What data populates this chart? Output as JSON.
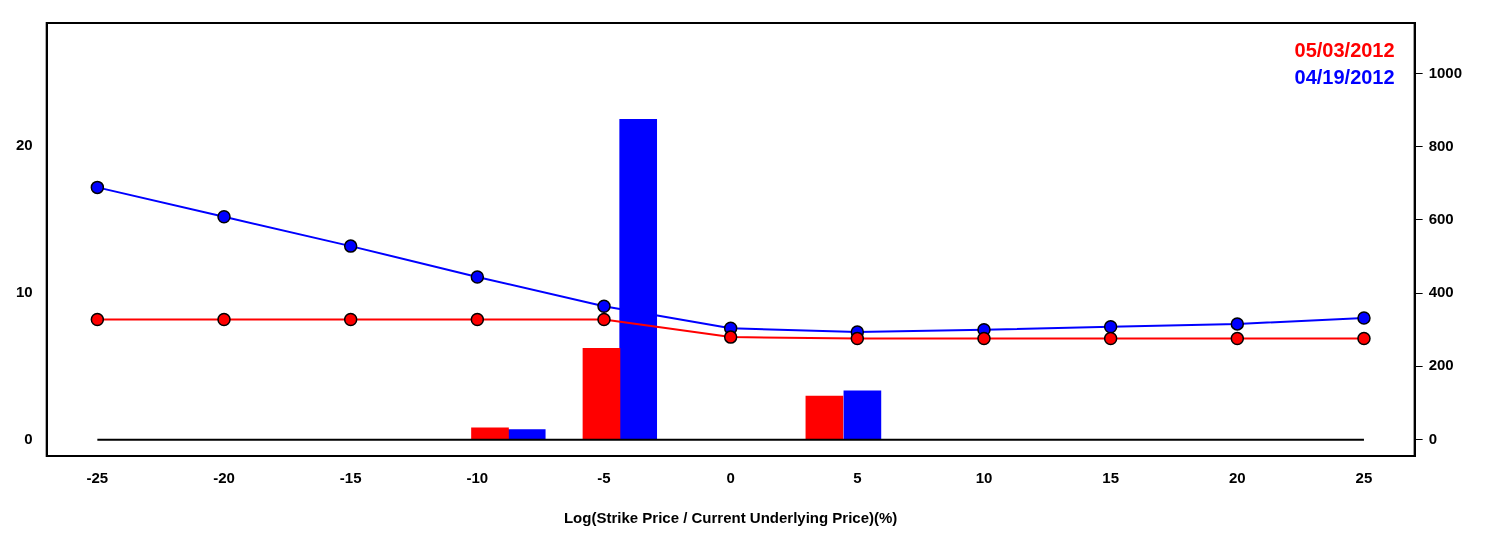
{
  "chart_data": {
    "type": "line",
    "xlabel": "Log(Strike Price / Current Underlying Price)(%)",
    "xlim": [
      -27,
      27
    ],
    "xticks": [
      -25,
      -20,
      -15,
      -10,
      -5,
      0,
      5,
      10,
      15,
      20,
      25
    ],
    "ylim": [
      -1.1,
      28.4
    ],
    "yticks": [
      0,
      10,
      20
    ],
    "y2lim": [
      -45,
      1138
    ],
    "y2ticks": [
      0,
      200,
      400,
      600,
      800,
      1000
    ],
    "grid": false,
    "legend": "top right",
    "marker": "circle",
    "line_style": "solid",
    "series": [
      {
        "type": "bar",
        "axis": "y2",
        "color": "#ff0000",
        "x": [
          -9.5,
          -5.1,
          3.7
        ],
        "values": [
          32,
          249,
          119
        ]
      },
      {
        "type": "bar",
        "axis": "y2",
        "color": "#0000ff",
        "x": [
          -8.05,
          -3.65,
          5.2
        ],
        "values": [
          27,
          875,
          133
        ]
      },
      {
        "name": "05/03/2012",
        "color": "#ff0000",
        "x": [
          -25,
          -20,
          -15,
          -10,
          -5,
          0,
          5,
          10,
          15,
          20,
          25
        ],
        "values": [
          8.2,
          8.2,
          8.2,
          8.2,
          8.2,
          7.0,
          6.9,
          6.9,
          6.9,
          6.9,
          6.9
        ]
      },
      {
        "name": "04/19/2012",
        "color": "#0000ff",
        "x": [
          -25,
          -20,
          -15,
          -10,
          -5,
          0,
          5,
          10,
          15,
          20,
          25
        ],
        "values": [
          17.2,
          15.2,
          13.2,
          11.1,
          9.1,
          7.6,
          7.35,
          7.5,
          7.7,
          7.9,
          8.3
        ]
      }
    ],
    "ref_lines": [
      {
        "axis": "y",
        "value": 0,
        "color": "#000000"
      }
    ]
  }
}
